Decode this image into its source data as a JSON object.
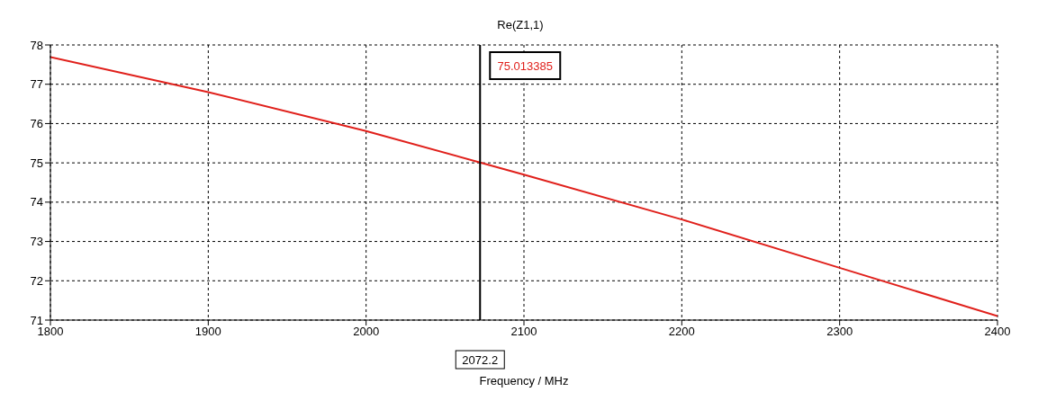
{
  "chart_data": {
    "type": "line",
    "title": "Re(Z1,1)",
    "xlabel": "Frequency / MHz",
    "x": [
      1800,
      1900,
      2000,
      2072.2,
      2100,
      2200,
      2300,
      2400
    ],
    "series": [
      {
        "color": "#e0201b",
        "values": [
          77.69,
          76.8,
          75.81,
          75.01,
          74.7,
          73.56,
          72.33,
          71.1
        ]
      }
    ],
    "xlim": [
      1800,
      2400
    ],
    "xticks": [
      1800,
      1900,
      2000,
      2100,
      2200,
      2300,
      2400
    ],
    "ylim": [
      71,
      78
    ],
    "yticks": [
      71,
      72,
      73,
      74,
      75,
      76,
      77,
      78
    ],
    "grid": true,
    "marker": "none",
    "line_style": "solid",
    "ref_lines": [
      {
        "axis": "x",
        "value": 2072.2,
        "label": "2072.2",
        "color": "#000000"
      }
    ],
    "annotations": [
      "75.013385"
    ]
  }
}
